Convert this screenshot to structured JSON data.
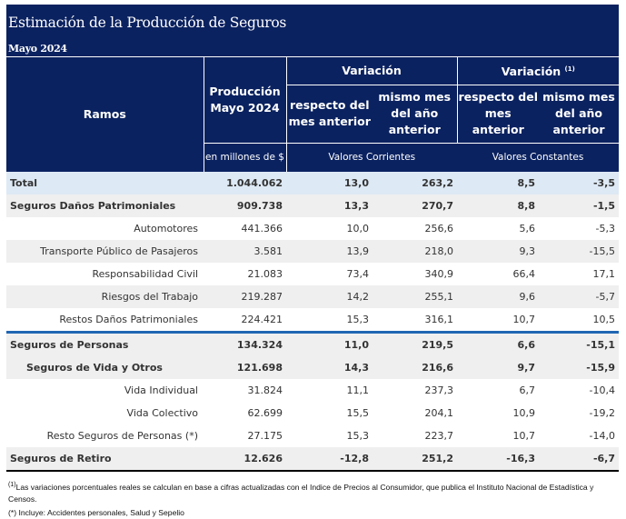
{
  "title": "Estimación de la Producción de Seguros",
  "subtitle": "Mayo 2024",
  "headers": {
    "ramos": "Ramos",
    "produccion": "Producción Mayo 2024",
    "variacion": "Variación",
    "variacion_real": "Variación",
    "variacion_real_note": "(1)",
    "respecto": "respecto del mes anterior",
    "mismo": "mismo mes del año anterior",
    "unidad": "en millones de $",
    "corrientes": "Valores Corrientes",
    "constantes": "Valores Constantes"
  },
  "rows": [
    {
      "label": "Total",
      "prod": "1.044.062",
      "c1": "13,0",
      "c2": "263,2",
      "k1": "8,5",
      "k2": "-3,5"
    },
    {
      "label": "Seguros Daños Patrimoniales",
      "prod": "909.738",
      "c1": "13,3",
      "c2": "270,7",
      "k1": "8,8",
      "k2": "-1,5"
    },
    {
      "label": "Automotores",
      "prod": "441.366",
      "c1": "10,0",
      "c2": "256,6",
      "k1": "5,6",
      "k2": "-5,3"
    },
    {
      "label": "Transporte Público de Pasajeros",
      "prod": "3.581",
      "c1": "13,9",
      "c2": "218,0",
      "k1": "9,3",
      "k2": "-15,5"
    },
    {
      "label": "Responsabilidad Civil",
      "prod": "21.083",
      "c1": "73,4",
      "c2": "340,9",
      "k1": "66,4",
      "k2": "17,1"
    },
    {
      "label": "Riesgos del Trabajo",
      "prod": "219.287",
      "c1": "14,2",
      "c2": "255,1",
      "k1": "9,6",
      "k2": "-5,7"
    },
    {
      "label": "Restos Daños Patrimoniales",
      "prod": "224.421",
      "c1": "15,3",
      "c2": "316,1",
      "k1": "10,7",
      "k2": "10,5"
    },
    {
      "label": "Seguros de Personas",
      "prod": "134.324",
      "c1": "11,0",
      "c2": "219,5",
      "k1": "6,6",
      "k2": "-15,1"
    },
    {
      "label": "Seguros de Vida y Otros",
      "prod": "121.698",
      "c1": "14,3",
      "c2": "216,6",
      "k1": "9,7",
      "k2": "-15,9"
    },
    {
      "label": "Vida Individual",
      "prod": "31.824",
      "c1": "11,1",
      "c2": "237,3",
      "k1": "6,7",
      "k2": "-10,4"
    },
    {
      "label": "Vida Colectivo",
      "prod": "62.699",
      "c1": "15,5",
      "c2": "204,1",
      "k1": "10,9",
      "k2": "-19,2"
    },
    {
      "label": "Resto Seguros de Personas (*)",
      "prod": "27.175",
      "c1": "15,3",
      "c2": "223,7",
      "k1": "10,7",
      "k2": "-14,0"
    },
    {
      "label": "Seguros de Retiro",
      "prod": "12.626",
      "c1": "-12,8",
      "c2": "251,2",
      "k1": "-16,3",
      "k2": "-6,7"
    }
  ],
  "footnotes": {
    "note1_mark": "(1)",
    "note1": "Las variaciones porcentuales reales se calculan en base a cifras actualizadas con  el Indice de Precios al Consumidor, que publica el Instituto Nacional de Estadística y Censos.",
    "note2": "(*) Incluye: Accidentes personales, Salud y Sepelio"
  }
}
